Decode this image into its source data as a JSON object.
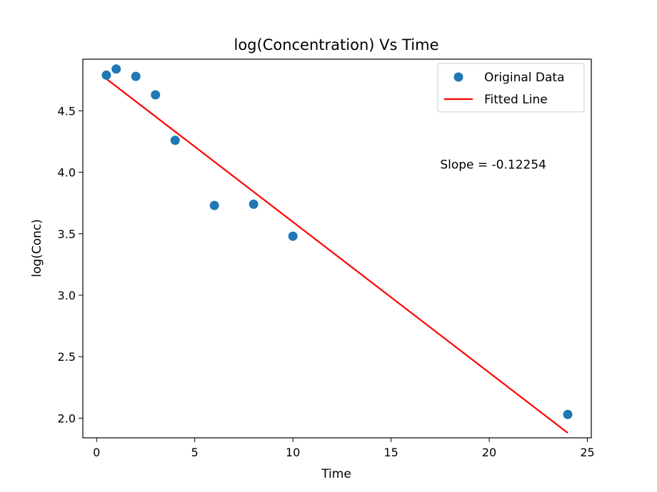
{
  "chart_data": {
    "type": "scatter",
    "title": "log(Concentration) Vs Time",
    "xlabel": "Time",
    "ylabel": "log(Conc)",
    "xlim": [
      -0.7,
      25.2
    ],
    "ylim": [
      1.84,
      4.92
    ],
    "xticks": [
      0,
      5,
      10,
      15,
      20,
      25
    ],
    "yticks": [
      2.0,
      2.5,
      3.0,
      3.5,
      4.0,
      4.5
    ],
    "ytick_labels": [
      "2.0",
      "2.5",
      "3.0",
      "3.5",
      "4.0",
      "4.5"
    ],
    "grid": false,
    "legend_position": "top-right",
    "series": [
      {
        "name": "Original Data",
        "kind": "markers",
        "color": "#1f77b4",
        "x": [
          0.5,
          1,
          2,
          3,
          4,
          6,
          8,
          10,
          24
        ],
        "y": [
          4.79,
          4.84,
          4.78,
          4.63,
          4.26,
          3.73,
          3.74,
          3.48,
          2.03
        ]
      },
      {
        "name": "Fitted Line",
        "kind": "line",
        "color": "#ff0000",
        "x": [
          0.5,
          24
        ],
        "y": [
          4.76,
          1.88
        ]
      }
    ],
    "annotations": [
      {
        "text": "Slope = -0.12254",
        "x": 17.5,
        "y": 4.03
      }
    ]
  }
}
